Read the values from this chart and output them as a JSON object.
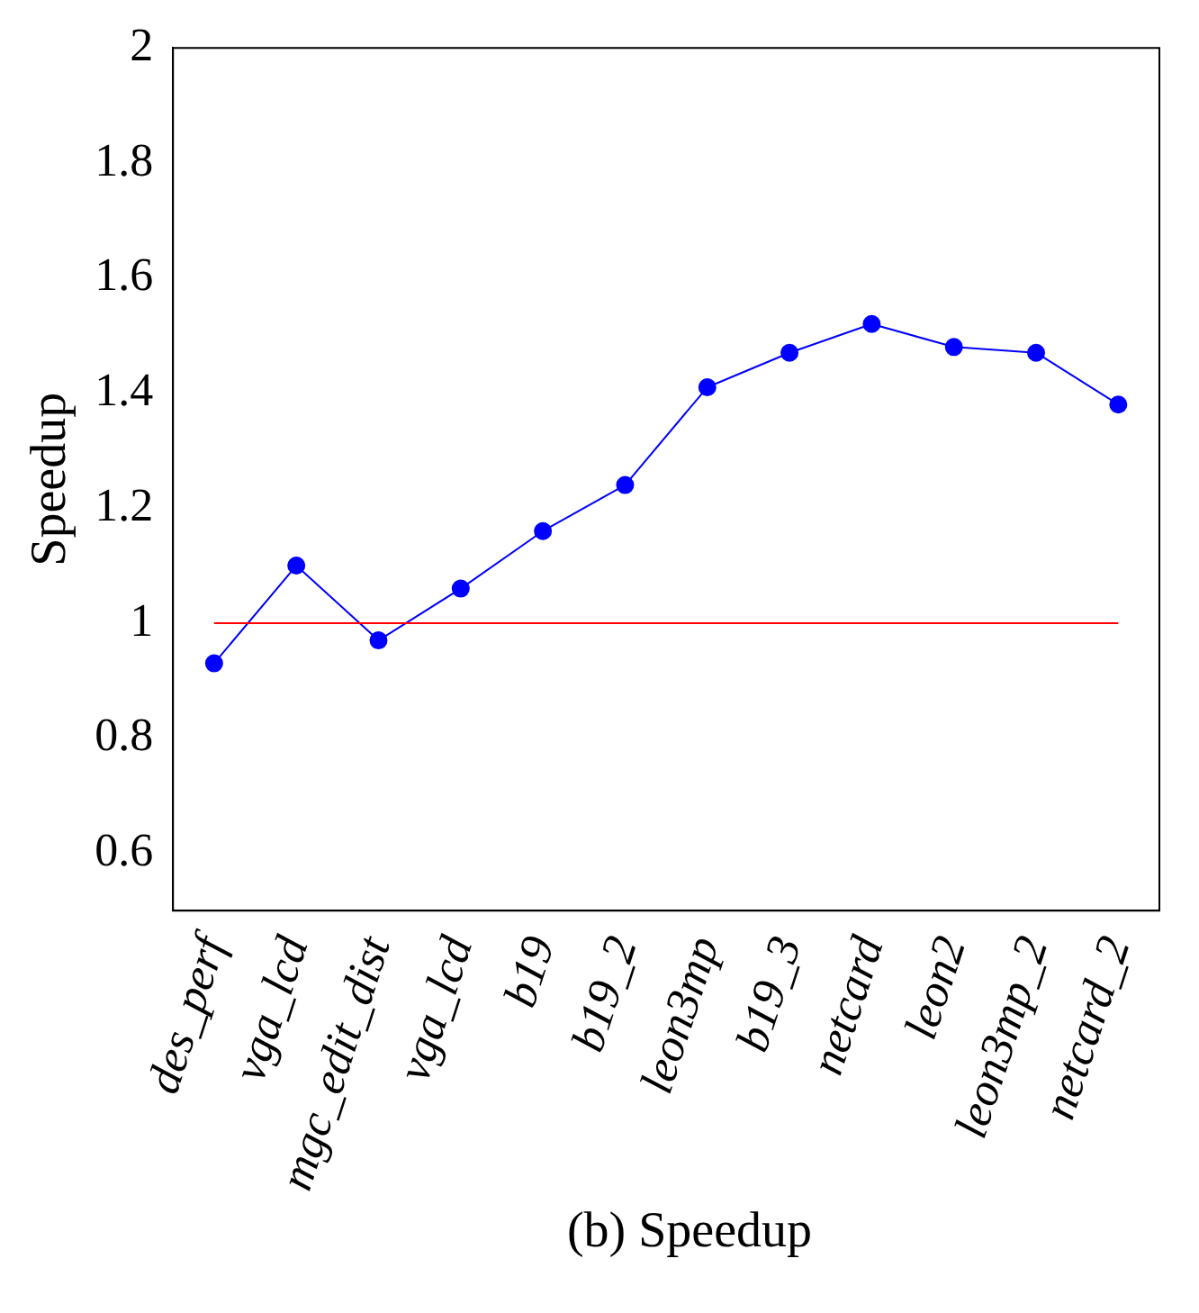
{
  "chart_data": {
    "type": "line",
    "ylabel": "Speedup",
    "annotations": [
      "(b) Speedup"
    ],
    "categories": [
      "des_perf",
      "vga_lcd",
      "mgc_edit_dist",
      "vga_lcd",
      "b19",
      "b19_2",
      "leon3mp",
      "b19_3",
      "netcard",
      "leon2",
      "leon3mp_2",
      "netcard_2"
    ],
    "series": [
      {
        "color": "#0000ff",
        "values": [
          0.93,
          1.1,
          0.97,
          1.06,
          1.16,
          1.24,
          1.41,
          1.47,
          1.52,
          1.48,
          1.47,
          1.38
        ]
      }
    ],
    "ylim": [
      0.5,
      2
    ],
    "yticks": [
      0.6,
      0.8,
      1,
      1.2,
      1.4,
      1.6,
      1.8,
      2
    ],
    "grid": false,
    "legend": false,
    "marker": "circle",
    "line_style": "solid",
    "ref_lines": [
      {
        "axis": "y",
        "value": 1,
        "color": "#ff0000"
      }
    ]
  }
}
